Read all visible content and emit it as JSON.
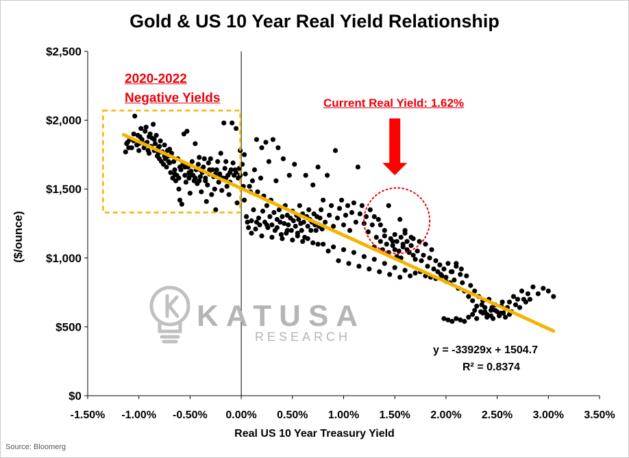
{
  "chart_data": {
    "type": "scatter",
    "title": "Gold & US 10 Year Real Yield Relationship",
    "xlabel": "Real US 10 Year Treasury  Yield",
    "ylabel": "($/ounce)",
    "xlim": [
      -0.015,
      0.035
    ],
    "ylim": [
      0,
      2500
    ],
    "x_ticks": [
      "-1.50%",
      "-1.00%",
      "-0.50%",
      "0.00%",
      "0.50%",
      "1.00%",
      "1.50%",
      "2.00%",
      "2.50%",
      "3.00%",
      "3.50%"
    ],
    "y_ticks": [
      "$0",
      "$500",
      "$1,000",
      "$1,500",
      "$2,000",
      "$2,500"
    ],
    "grid": false,
    "legend": "none",
    "trendline": {
      "slope": -33929,
      "intercept": 1504.7,
      "x_range": [
        -0.0115,
        0.0305
      ],
      "equation": "y = -33929x + 1504.7",
      "r_squared": "R² = 0.8374",
      "color": "#f5b400"
    },
    "points": [
      [
        -0.0113,
        1770
      ],
      [
        -0.0111,
        1840
      ],
      [
        -0.0109,
        1860
      ],
      [
        -0.0107,
        1800
      ],
      [
        -0.0105,
        1900
      ],
      [
        -0.0104,
        2030
      ],
      [
        -0.0102,
        1820
      ],
      [
        -0.01,
        1780
      ],
      [
        -0.0099,
        1880
      ],
      [
        -0.0098,
        1940
      ],
      [
        -0.0097,
        1860
      ],
      [
        -0.0095,
        1800
      ],
      [
        -0.0094,
        1920
      ],
      [
        -0.0093,
        1950
      ],
      [
        -0.0092,
        1840
      ],
      [
        -0.009,
        1760
      ],
      [
        -0.0089,
        1900
      ],
      [
        -0.0088,
        1810
      ],
      [
        -0.0087,
        1870
      ],
      [
        -0.0086,
        1970
      ],
      [
        -0.0085,
        1780
      ],
      [
        -0.0084,
        1830
      ],
      [
        -0.0083,
        1890
      ],
      [
        -0.0082,
        1740
      ],
      [
        -0.0081,
        1800
      ],
      [
        -0.008,
        1720
      ],
      [
        -0.0079,
        1850
      ],
      [
        -0.0078,
        1700
      ],
      [
        -0.0077,
        1770
      ],
      [
        -0.0076,
        1680
      ],
      [
        -0.0075,
        1820
      ],
      [
        -0.0074,
        1720
      ],
      [
        -0.0073,
        1660
      ],
      [
        -0.0072,
        1780
      ],
      [
        -0.0071,
        1740
      ],
      [
        -0.007,
        1690
      ],
      [
        -0.0069,
        1620
      ],
      [
        -0.0068,
        1760
      ],
      [
        -0.0067,
        1580
      ],
      [
        -0.0066,
        1700
      ],
      [
        -0.0065,
        1640
      ],
      [
        -0.0064,
        1560
      ],
      [
        -0.0063,
        1600
      ],
      [
        -0.0062,
        1720
      ],
      [
        -0.0061,
        1500
      ],
      [
        -0.006,
        1420
      ],
      [
        -0.0059,
        1640
      ],
      [
        -0.0058,
        1390
      ],
      [
        -0.0057,
        1680
      ],
      [
        -0.0056,
        1900
      ],
      [
        -0.0055,
        1600
      ],
      [
        -0.0054,
        1550
      ],
      [
        -0.0053,
        1920
      ],
      [
        -0.0052,
        1660
      ],
      [
        -0.0051,
        1580
      ],
      [
        -0.005,
        1470
      ],
      [
        -0.0049,
        1630
      ],
      [
        -0.0048,
        1700
      ],
      [
        -0.0047,
        1600
      ],
      [
        -0.0046,
        1560
      ],
      [
        -0.0045,
        1830
      ],
      [
        -0.0044,
        1640
      ],
      [
        -0.0043,
        1540
      ],
      [
        -0.0042,
        1680
      ],
      [
        -0.0041,
        1730
      ],
      [
        -0.004,
        1590
      ],
      [
        -0.0039,
        1480
      ],
      [
        -0.0038,
        1620
      ],
      [
        -0.0037,
        1660
      ],
      [
        -0.0036,
        1720
      ],
      [
        -0.0035,
        1580
      ],
      [
        -0.0034,
        1410
      ],
      [
        -0.0033,
        1530
      ],
      [
        -0.0032,
        1690
      ],
      [
        -0.0031,
        1610
      ],
      [
        -0.003,
        1720
      ],
      [
        -0.0029,
        1460
      ],
      [
        -0.0028,
        1640
      ],
      [
        -0.0027,
        1590
      ],
      [
        -0.0026,
        1500
      ],
      [
        -0.0025,
        1350
      ],
      [
        -0.0024,
        1640
      ],
      [
        -0.0023,
        1700
      ],
      [
        -0.0022,
        1550
      ],
      [
        -0.0021,
        1610
      ],
      [
        -0.002,
        1760
      ],
      [
        -0.0019,
        1490
      ],
      [
        -0.0018,
        1580
      ],
      [
        -0.0017,
        1980
      ],
      [
        -0.0016,
        1650
      ],
      [
        -0.0015,
        1700
      ],
      [
        -0.0014,
        1520
      ],
      [
        -0.0013,
        1600
      ],
      [
        -0.0012,
        1460
      ],
      [
        -0.0011,
        1550
      ],
      [
        -0.001,
        1640
      ],
      [
        -0.0009,
        1980
      ],
      [
        -0.0008,
        1690
      ],
      [
        -0.0007,
        1600
      ],
      [
        -0.0006,
        1640
      ],
      [
        -0.0005,
        1940
      ],
      [
        -0.0004,
        1400
      ],
      [
        -0.0003,
        1580
      ],
      [
        -0.0002,
        1650
      ],
      [
        -0.0001,
        1780
      ],
      [
        -0.01,
        1830
      ],
      [
        -0.009,
        1880
      ],
      [
        -0.008,
        1810
      ],
      [
        -0.007,
        1790
      ],
      [
        -0.006,
        1660
      ],
      [
        -0.005,
        1600
      ],
      [
        -0.004,
        1640
      ],
      [
        -0.011,
        1800
      ],
      [
        -0.0105,
        1850
      ],
      [
        -0.0095,
        1830
      ],
      [
        -0.0085,
        1860
      ],
      [
        -0.0075,
        1740
      ],
      [
        -0.0065,
        1610
      ],
      [
        -0.0055,
        1660
      ],
      [
        -0.0045,
        1580
      ],
      [
        -0.0035,
        1560
      ],
      [
        -0.0025,
        1610
      ],
      [
        -0.0015,
        1580
      ],
      [
        -0.0005,
        1620
      ],
      [
        -0.0112,
        1830
      ],
      [
        -0.0101,
        1890
      ],
      [
        -0.0091,
        1780
      ],
      [
        -0.0081,
        1760
      ],
      [
        -0.0071,
        1700
      ],
      [
        -0.0061,
        1580
      ],
      [
        -0.0051,
        1620
      ],
      [
        -0.0041,
        1560
      ],
      [
        -0.0031,
        1640
      ],
      [
        -0.0021,
        1590
      ],
      [
        -0.0011,
        1620
      ],
      [
        -0.0001,
        1600
      ],
      [
        0.0001,
        1680
      ],
      [
        0.0002,
        1520
      ],
      [
        0.0003,
        1420
      ],
      [
        0.0003,
        1750
      ],
      [
        0.0004,
        1610
      ],
      [
        0.0005,
        1300
      ],
      [
        0.0006,
        1260
      ],
      [
        0.0007,
        1220
      ],
      [
        0.0008,
        1520
      ],
      [
        0.0009,
        1480
      ],
      [
        0.001,
        1270
      ],
      [
        0.0011,
        1560
      ],
      [
        0.0012,
        1350
      ],
      [
        0.0013,
        1640
      ],
      [
        0.0014,
        1210
      ],
      [
        0.0015,
        1860
      ],
      [
        0.0016,
        1480
      ],
      [
        0.0017,
        1290
      ],
      [
        0.0018,
        1240
      ],
      [
        0.0019,
        1580
      ],
      [
        0.002,
        1800
      ],
      [
        0.0021,
        1340
      ],
      [
        0.0022,
        1450
      ],
      [
        0.0023,
        1260
      ],
      [
        0.0024,
        1840
      ],
      [
        0.0025,
        1380
      ],
      [
        0.0026,
        1220
      ],
      [
        0.0027,
        1700
      ],
      [
        0.0028,
        1300
      ],
      [
        0.0029,
        1420
      ],
      [
        0.003,
        1240
      ],
      [
        0.0031,
        1860
      ],
      [
        0.0032,
        1330
      ],
      [
        0.0033,
        1200
      ],
      [
        0.0034,
        1560
      ],
      [
        0.0035,
        1280
      ],
      [
        0.0036,
        1800
      ],
      [
        0.0037,
        1350
      ],
      [
        0.0038,
        1260
      ],
      [
        0.0039,
        1170
      ],
      [
        0.004,
        1300
      ],
      [
        0.0041,
        1720
      ],
      [
        0.0042,
        1250
      ],
      [
        0.0043,
        1380
      ],
      [
        0.0044,
        1180
      ],
      [
        0.0045,
        1310
      ],
      [
        0.0046,
        1240
      ],
      [
        0.0047,
        1600
      ],
      [
        0.0048,
        1290
      ],
      [
        0.0049,
        1200
      ],
      [
        0.005,
        1340
      ],
      [
        0.0051,
        1270
      ],
      [
        0.0052,
        1680
      ],
      [
        0.0053,
        1230
      ],
      [
        0.0054,
        1310
      ],
      [
        0.0055,
        1160
      ],
      [
        0.0056,
        1280
      ],
      [
        0.0057,
        1380
      ],
      [
        0.0058,
        1250
      ],
      [
        0.0059,
        1200
      ],
      [
        0.006,
        1320
      ],
      [
        0.0061,
        1260
      ],
      [
        0.0062,
        1150
      ],
      [
        0.0063,
        1600
      ],
      [
        0.0064,
        1300
      ],
      [
        0.0065,
        1230
      ],
      [
        0.0066,
        1350
      ],
      [
        0.0067,
        1280
      ],
      [
        0.0068,
        1200
      ],
      [
        0.0069,
        1260
      ],
      [
        0.007,
        1530
      ],
      [
        0.0071,
        1320
      ],
      [
        0.0072,
        1240
      ],
      [
        0.0073,
        1200
      ],
      [
        0.0074,
        1300
      ],
      [
        0.0075,
        1660
      ],
      [
        0.0076,
        1230
      ],
      [
        0.0077,
        1290
      ],
      [
        0.0078,
        1350
      ],
      [
        0.0079,
        1210
      ],
      [
        0.008,
        1420
      ],
      [
        0.0082,
        1260
      ],
      [
        0.0084,
        1600
      ],
      [
        0.0086,
        1310
      ],
      [
        0.0088,
        1380
      ],
      [
        0.009,
        1230
      ],
      [
        0.0092,
        1780
      ],
      [
        0.0094,
        1290
      ],
      [
        0.0096,
        1360
      ],
      [
        0.0098,
        1420
      ],
      [
        0.01,
        1240
      ],
      [
        0.0102,
        1310
      ],
      [
        0.0104,
        1380
      ],
      [
        0.0106,
        1200
      ],
      [
        0.0108,
        1330
      ],
      [
        0.011,
        1400
      ],
      [
        0.0112,
        1260
      ],
      [
        0.0114,
        1660
      ],
      [
        0.0116,
        1320
      ],
      [
        0.0118,
        1380
      ],
      [
        0.012,
        1250
      ],
      [
        0.0122,
        1300
      ],
      [
        0.0124,
        1190
      ],
      [
        0.0126,
        1350
      ],
      [
        0.0128,
        1240
      ],
      [
        0.013,
        1080
      ],
      [
        0.0132,
        1150
      ],
      [
        0.0134,
        1280
      ],
      [
        0.0136,
        1120
      ],
      [
        0.0138,
        1060
      ],
      [
        0.014,
        1200
      ],
      [
        0.0142,
        1100
      ],
      [
        0.0144,
        1380
      ],
      [
        0.0146,
        1140
      ],
      [
        0.0148,
        1090
      ],
      [
        0.015,
        1170
      ],
      [
        0.0152,
        1120
      ],
      [
        0.0154,
        1050
      ],
      [
        0.0156,
        1150
      ],
      [
        0.0158,
        1100
      ],
      [
        0.016,
        1180
      ],
      [
        0.0162,
        1120
      ],
      [
        0.0164,
        1040
      ],
      [
        0.0166,
        1090
      ],
      [
        0.0168,
        1140
      ],
      [
        0.017,
        990
      ],
      [
        0.0172,
        1050
      ],
      [
        0.0174,
        1120
      ],
      [
        0.0176,
        980
      ],
      [
        0.0178,
        1020
      ],
      [
        0.018,
        1100
      ],
      [
        0.0182,
        940
      ],
      [
        0.0184,
        1000
      ],
      [
        0.0186,
        1060
      ],
      [
        0.0188,
        920
      ],
      [
        0.019,
        980
      ],
      [
        0.0192,
        900
      ],
      [
        0.0194,
        950
      ],
      [
        0.0196,
        870
      ],
      [
        0.0198,
        920
      ],
      [
        0.02,
        860
      ],
      [
        0.0202,
        960
      ],
      [
        0.0204,
        820
      ],
      [
        0.0206,
        900
      ],
      [
        0.0208,
        840
      ],
      [
        0.021,
        940
      ],
      [
        0.0212,
        780
      ],
      [
        0.0214,
        880
      ],
      [
        0.0216,
        820
      ],
      [
        0.0218,
        760
      ],
      [
        0.022,
        870
      ],
      [
        0.0222,
        720
      ],
      [
        0.0224,
        800
      ],
      [
        0.0226,
        690
      ],
      [
        0.0228,
        760
      ],
      [
        0.023,
        650
      ],
      [
        0.0232,
        720
      ],
      [
        0.0234,
        610
      ],
      [
        0.0236,
        690
      ],
      [
        0.0238,
        640
      ],
      [
        0.024,
        590
      ],
      [
        0.0242,
        700
      ],
      [
        0.0244,
        620
      ],
      [
        0.0246,
        560
      ],
      [
        0.0248,
        660
      ],
      [
        0.025,
        610
      ],
      [
        0.0252,
        580
      ],
      [
        0.0254,
        650
      ],
      [
        0.0256,
        600
      ],
      [
        0.0258,
        570
      ],
      [
        0.026,
        640
      ],
      [
        0.0262,
        680
      ],
      [
        0.0264,
        610
      ],
      [
        0.0266,
        720
      ],
      [
        0.0268,
        660
      ],
      [
        0.027,
        700
      ],
      [
        0.0272,
        640
      ],
      [
        0.0274,
        760
      ],
      [
        0.0276,
        700
      ],
      [
        0.0278,
        680
      ],
      [
        0.028,
        740
      ],
      [
        0.0282,
        700
      ],
      [
        0.0285,
        790
      ],
      [
        0.029,
        740
      ],
      [
        0.0295,
        780
      ],
      [
        0.03,
        760
      ],
      [
        0.0305,
        720
      ],
      [
        0.0198,
        560
      ],
      [
        0.0202,
        550
      ],
      [
        0.0206,
        540
      ],
      [
        0.021,
        560
      ],
      [
        0.0214,
        550
      ],
      [
        0.0218,
        540
      ],
      [
        0.0222,
        570
      ],
      [
        0.0226,
        590
      ],
      [
        0.023,
        560
      ],
      [
        0.0236,
        600
      ],
      [
        0.024,
        570
      ],
      [
        0.0244,
        580
      ],
      [
        0.0248,
        620
      ],
      [
        0.0254,
        600
      ],
      [
        0.0258,
        630
      ],
      [
        0.0262,
        590
      ],
      [
        0.0235,
        660
      ],
      [
        0.0245,
        640
      ],
      [
        0.0255,
        680
      ],
      [
        0.0228,
        620
      ],
      [
        0.0238,
        610
      ],
      [
        0.021,
        960
      ],
      [
        0.0215,
        920
      ],
      [
        0.0205,
        900
      ],
      [
        0.0195,
        880
      ],
      [
        0.0185,
        860
      ],
      [
        0.0175,
        900
      ],
      [
        0.0165,
        870
      ],
      [
        0.0155,
        860
      ],
      [
        0.0145,
        880
      ],
      [
        0.0135,
        900
      ],
      [
        0.0125,
        920
      ],
      [
        0.0115,
        940
      ],
      [
        0.0105,
        960
      ],
      [
        0.0095,
        980
      ],
      [
        0.0085,
        1050
      ],
      [
        0.0075,
        1100
      ],
      [
        0.0065,
        1140
      ],
      [
        0.0055,
        1180
      ],
      [
        0.0045,
        1200
      ],
      [
        0.0035,
        1220
      ],
      [
        0.0025,
        1240
      ],
      [
        0.0015,
        1260
      ],
      [
        0.001,
        1180
      ],
      [
        0.002,
        1160
      ],
      [
        0.003,
        1150
      ],
      [
        0.004,
        1140
      ],
      [
        0.005,
        1130
      ],
      [
        0.006,
        1120
      ],
      [
        0.007,
        1110
      ],
      [
        0.008,
        1100
      ],
      [
        0.009,
        1080
      ],
      [
        0.01,
        1060
      ],
      [
        0.011,
        1040
      ],
      [
        0.012,
        1010
      ],
      [
        0.013,
        990
      ],
      [
        0.014,
        960
      ],
      [
        0.015,
        930
      ],
      [
        0.016,
        910
      ],
      [
        0.017,
        890
      ],
      [
        0.018,
        870
      ],
      [
        0.019,
        850
      ],
      [
        0.02,
        830
      ],
      [
        0.0156,
        1000
      ],
      [
        0.0162,
        1060
      ],
      [
        0.0148,
        1120
      ],
      [
        0.014,
        1160
      ],
      [
        0.0136,
        1240
      ],
      [
        0.013,
        1300
      ],
      [
        0.0155,
        1280
      ],
      [
        0.016,
        1200
      ],
      [
        0.0166,
        1150
      ],
      [
        0.015,
        1060
      ],
      [
        0.0144,
        1040
      ],
      [
        0.0158,
        1080
      ],
      [
        0.0152,
        1010
      ],
      [
        0.0168,
        1020
      ]
    ]
  },
  "annotations": {
    "negative_yields_line1": "2020-2022",
    "negative_yields_line2": "Negative Yields",
    "current_real_yield": "Current Real Yield: 1.62%",
    "equation": "y = -33929x + 1504.7",
    "r_squared": "R² = 0.8374"
  },
  "watermark": {
    "name": "KATUSA",
    "sub": "RESEARCH",
    "logo_icon": "lightbulb-k-icon"
  },
  "source": "Source: Bloomerg",
  "colors": {
    "points": "#000000",
    "trendline": "#f5b400",
    "highlight_box": "#f5b400",
    "annotation": "#e8000b",
    "arrow": "#ff0000",
    "circle": "#e8000b",
    "watermark": "#b5b5b5"
  }
}
